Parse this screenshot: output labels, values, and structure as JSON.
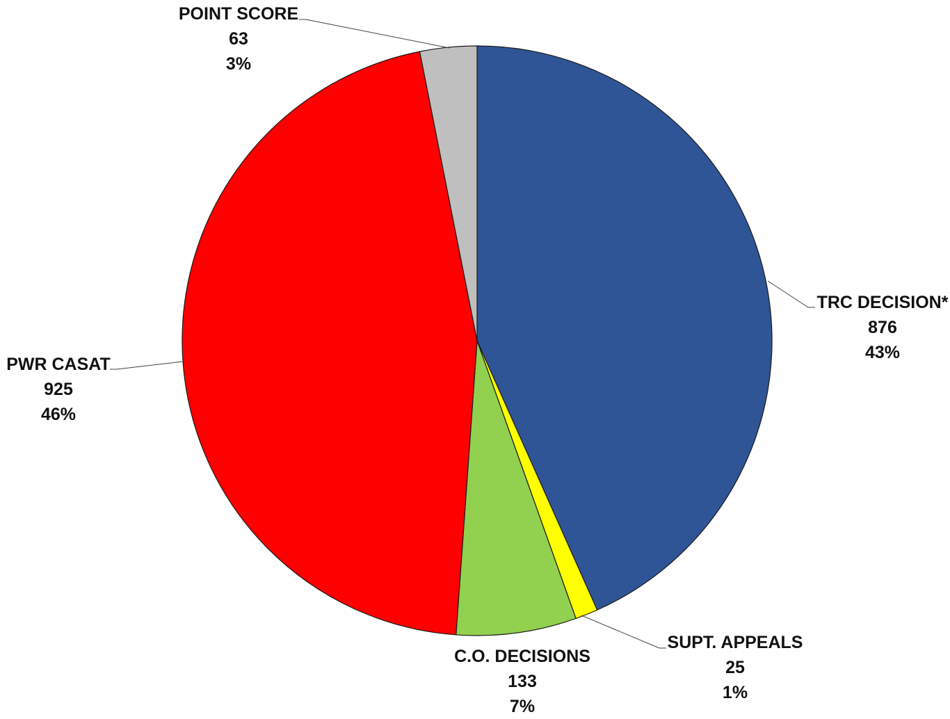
{
  "chart_data": {
    "type": "pie",
    "title": "",
    "start_angle_deg": 0,
    "direction": "clockwise",
    "slices": [
      {
        "label": "TRC DECISION*",
        "value": 876,
        "percent": "43%",
        "color": "#2F5597"
      },
      {
        "label": "SUPT. APPEALS",
        "value": 25,
        "percent": "1%",
        "color": "#FFFF00"
      },
      {
        "label": "C.O. DECISIONS",
        "value": 133,
        "percent": "7%",
        "color": "#92D050"
      },
      {
        "label": "PWR CASAT",
        "value": 925,
        "percent": "46%",
        "color": "#FF0000"
      },
      {
        "label": "POINT SCORE",
        "value": 63,
        "percent": "3%",
        "color": "#BFBFBF"
      }
    ],
    "legend": "none",
    "data_labels": "outside with leader lines"
  }
}
